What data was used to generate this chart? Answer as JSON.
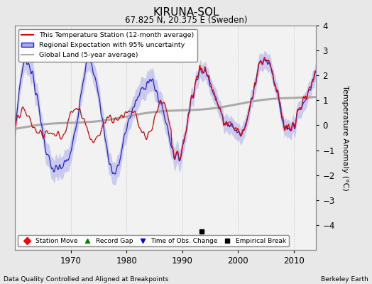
{
  "title": "KIRUNA-SOL",
  "subtitle": "67.825 N, 20.375 E (Sweden)",
  "legend_lines": [
    "This Temperature Station (12-month average)",
    "Regional Expectation with 95% uncertainty",
    "Global Land (5-year average)"
  ],
  "xlabel_left": "Data Quality Controlled and Aligned at Breakpoints",
  "xlabel_right": "Berkeley Earth",
  "ylabel": "Temperature Anomaly (°C)",
  "xlim": [
    1960,
    2014
  ],
  "ylim": [
    -5,
    4
  ],
  "yticks": [
    -4,
    -3,
    -2,
    -1,
    0,
    1,
    2,
    3,
    4
  ],
  "xticks": [
    1970,
    1980,
    1990,
    2000,
    2010
  ],
  "empirical_break_year": 1993.5,
  "empirical_break_y": -4.25,
  "background_color": "#e8e8e8",
  "plot_bg_color": "#f2f2f2",
  "red_color": "#dd0000",
  "blue_color": "#2222cc",
  "blue_fill_color": "#aaaaee",
  "gray_color": "#aaaaaa",
  "grid_color": "#cccccc"
}
